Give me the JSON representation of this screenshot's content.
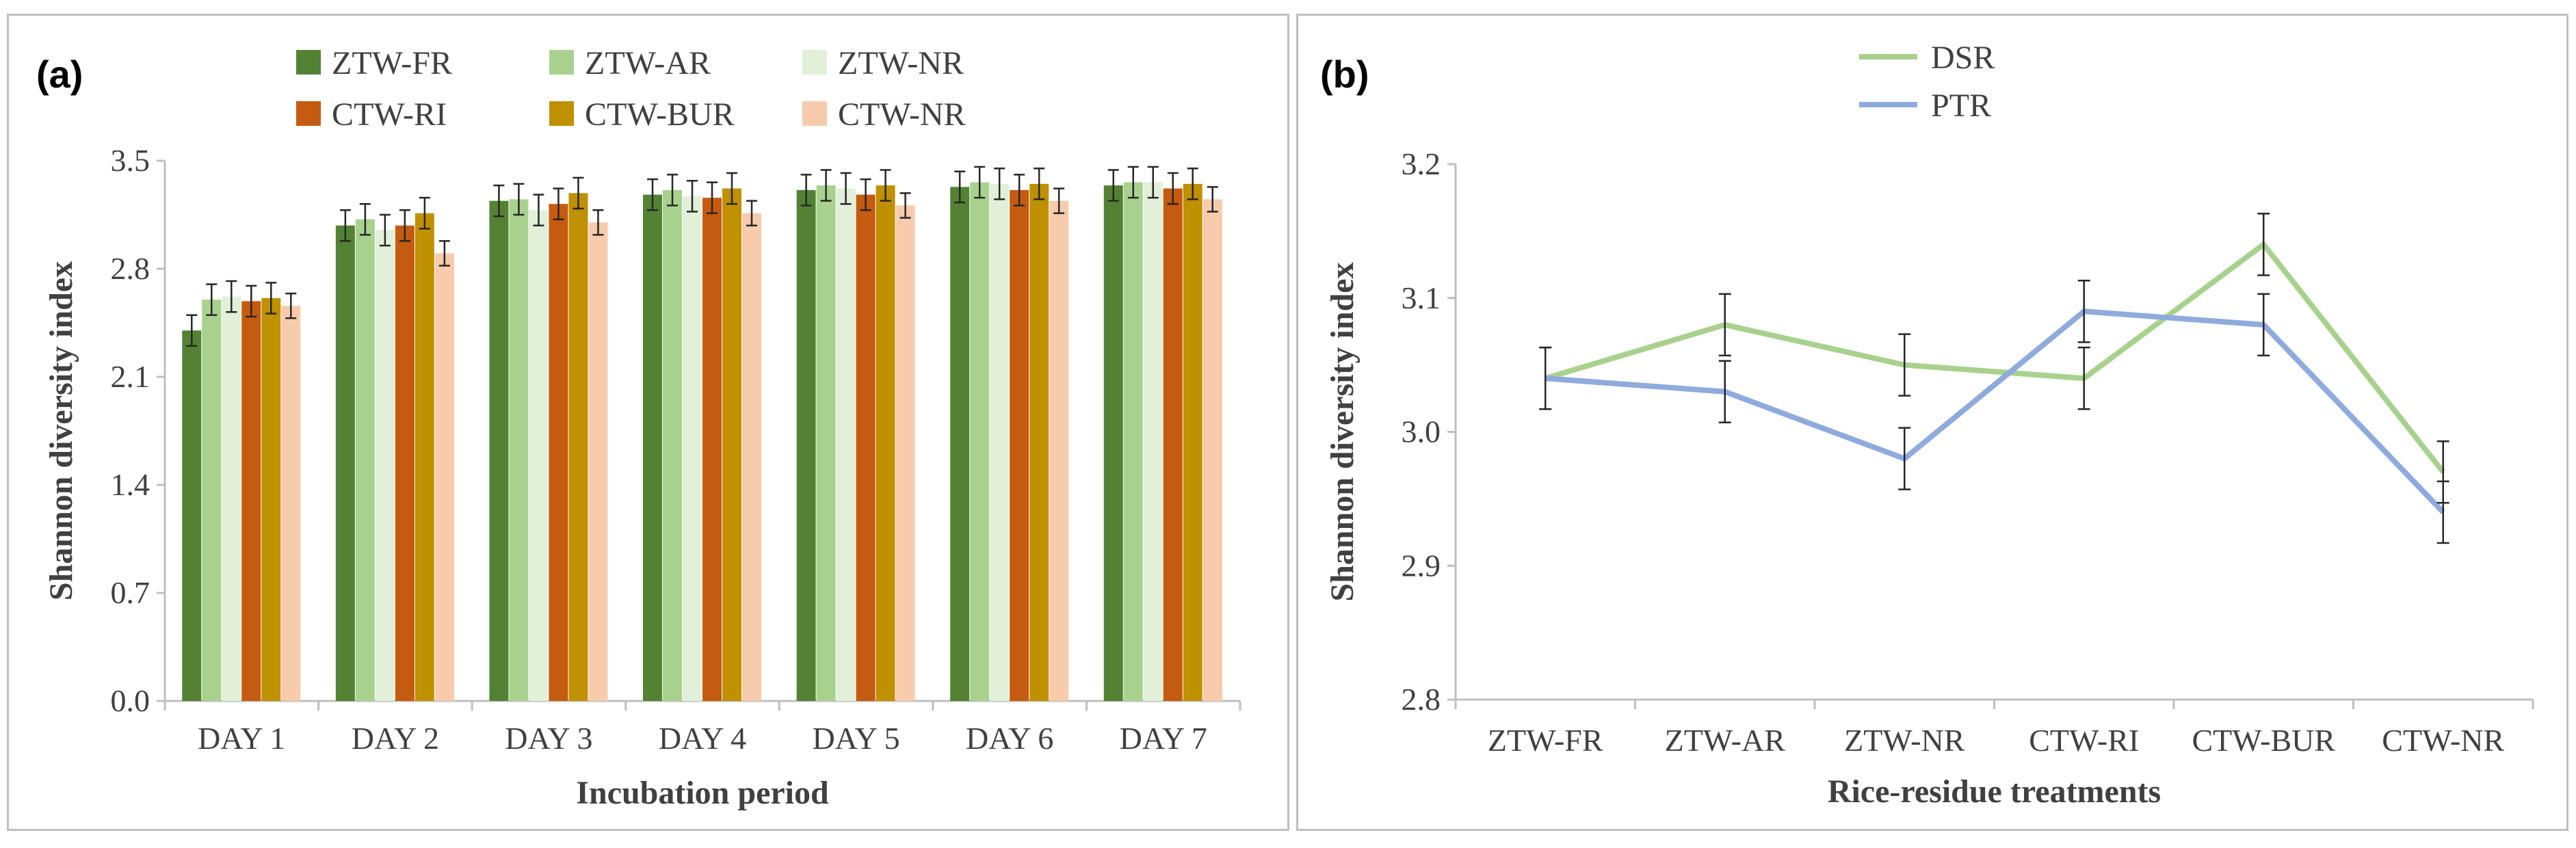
{
  "chart_data": [
    {
      "panel_label": "(a)",
      "type": "bar",
      "xlabel": "Incubation period",
      "ylabel": "Shannon diversity index",
      "ylim": [
        0,
        3.5
      ],
      "yticks": [
        "0.0",
        "0.7",
        "1.4",
        "2.1",
        "2.8",
        "3.5"
      ],
      "categories": [
        "DAY 1",
        "DAY 2",
        "DAY 3",
        "DAY 4",
        "DAY 5",
        "DAY 6",
        "DAY 7"
      ],
      "legend_position": "top",
      "grid": false,
      "error_bars": true,
      "series": [
        {
          "name": "ZTW-FR",
          "color": "#548235",
          "values": [
            2.4,
            3.08,
            3.24,
            3.28,
            3.31,
            3.33,
            3.34
          ],
          "errors": [
            0.1,
            0.1,
            0.1,
            0.1,
            0.1,
            0.1,
            0.1
          ]
        },
        {
          "name": "ZTW-AR",
          "color": "#a9d18e",
          "values": [
            2.6,
            3.12,
            3.25,
            3.31,
            3.34,
            3.36,
            3.36
          ],
          "errors": [
            0.1,
            0.1,
            0.1,
            0.1,
            0.1,
            0.1,
            0.1
          ]
        },
        {
          "name": "ZTW-NR",
          "color": "#e2f0d9",
          "values": [
            2.62,
            3.05,
            3.18,
            3.27,
            3.32,
            3.35,
            3.36
          ],
          "errors": [
            0.1,
            0.1,
            0.1,
            0.1,
            0.1,
            0.1,
            0.1
          ]
        },
        {
          "name": "CTW-RI",
          "color": "#c55a11",
          "values": [
            2.59,
            3.08,
            3.22,
            3.26,
            3.28,
            3.31,
            3.32
          ],
          "errors": [
            0.1,
            0.1,
            0.1,
            0.1,
            0.1,
            0.1,
            0.1
          ]
        },
        {
          "name": "CTW-BUR",
          "color": "#bf9000",
          "values": [
            2.61,
            3.16,
            3.29,
            3.32,
            3.34,
            3.35,
            3.35
          ],
          "errors": [
            0.1,
            0.1,
            0.1,
            0.1,
            0.1,
            0.1,
            0.1
          ]
        },
        {
          "name": "CTW-NR",
          "color": "#f8cbad",
          "values": [
            2.56,
            2.9,
            3.1,
            3.16,
            3.21,
            3.24,
            3.25
          ],
          "errors": [
            0.08,
            0.08,
            0.08,
            0.08,
            0.08,
            0.08,
            0.08
          ]
        }
      ]
    },
    {
      "panel_label": "(b)",
      "type": "line",
      "xlabel": "Rice-residue treatments",
      "ylabel": "Shannon diversity index",
      "ylim": [
        2.8,
        3.2
      ],
      "yticks": [
        "2.8",
        "2.9",
        "3.0",
        "3.1",
        "3.2"
      ],
      "categories": [
        "ZTW-FR",
        "ZTW-AR",
        "ZTW-NR",
        "CTW-RI",
        "CTW-BUR",
        "CTW-NR"
      ],
      "legend_position": "top",
      "grid": false,
      "error_bars": true,
      "series": [
        {
          "name": "DSR",
          "color": "#a9d18e",
          "values": [
            3.04,
            3.08,
            3.05,
            3.04,
            3.14,
            2.97
          ],
          "errors": [
            0.023,
            0.023,
            0.023,
            0.023,
            0.023,
            0.023
          ]
        },
        {
          "name": "PTR",
          "color": "#8faadc",
          "values": [
            3.04,
            3.03,
            2.98,
            3.09,
            3.08,
            2.94
          ],
          "errors": [
            0.023,
            0.023,
            0.023,
            0.023,
            0.023,
            0.023
          ]
        }
      ]
    }
  ]
}
